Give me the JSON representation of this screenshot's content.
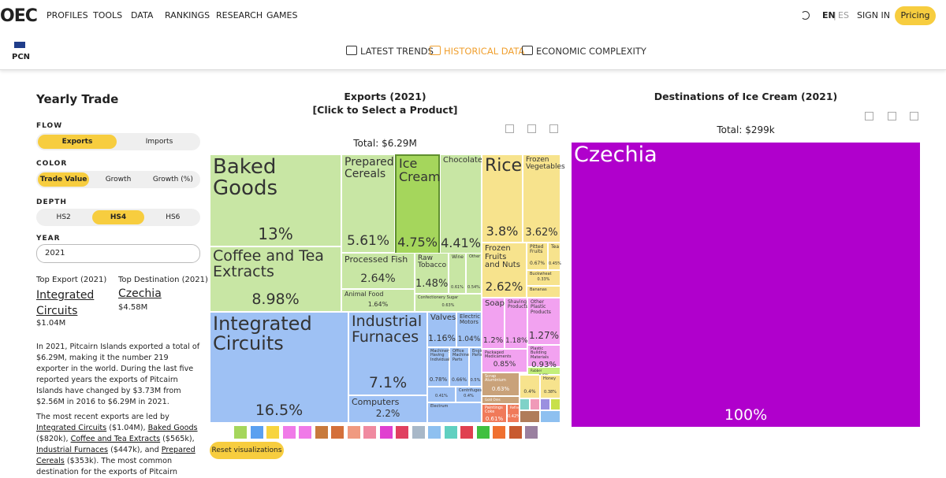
{
  "header": {
    "logo": "OEC",
    "nav": [
      "PROFILES",
      "TOOLS",
      "DATA",
      "RANKINGS",
      "RESEARCH",
      "GAMES"
    ],
    "lang_en": "EN",
    "lang_sep": "|",
    "lang_es": "ES",
    "sign_in": "SIGN IN",
    "pricing": "Pricing"
  },
  "profile": {
    "code": "PCN",
    "tabs": [
      "LATEST TRENDS",
      "HISTORICAL DATA",
      "ECONOMIC COMPLEXITY"
    ]
  },
  "sidebar": {
    "title": "Yearly Trade",
    "flow": {
      "label": "FLOW",
      "options": [
        "Exports",
        "Imports"
      ]
    },
    "color": {
      "label": "COLOR",
      "options": [
        "Trade Value",
        "Growth",
        "Growth (%)"
      ]
    },
    "depth": {
      "label": "DEPTH",
      "options": [
        "HS2",
        "HS4",
        "HS6"
      ]
    },
    "year": {
      "label": "YEAR",
      "value": "2021"
    },
    "top_export": {
      "label": "Top Export (2021)",
      "name": "Integrated Circuits",
      "value": "$1.04M"
    },
    "top_destination": {
      "label": "Top Destination (2021)",
      "name": "Czechia",
      "value": "$4.58M"
    },
    "paragraph1": "In 2021, Pitcairn Islands exported a total of $6.29M, making it the number 219 exporter in the world. During the last five reported years the exports of Pitcairn Islands have changed by $3.73M from $2.56M in 2016 to $6.29M in 2021.",
    "paragraph2": [
      {
        "text": "The most recent exports are led by "
      },
      {
        "link": "Integrated Circuits"
      },
      {
        "text": " ($1.04M), "
      },
      {
        "link": "Baked Goods"
      },
      {
        "text": " ($820k), "
      },
      {
        "link": "Coffee and Tea Extracts"
      },
      {
        "text": " ($565k), "
      },
      {
        "link": "Industrial Furnaces"
      },
      {
        "text": " ($447k), and "
      },
      {
        "link": "Prepared Cereals"
      },
      {
        "text": " ($353k). The most common destination for the exports of Pitcairn"
      }
    ]
  },
  "exports_chart": {
    "title": "Exports (2021)",
    "subtitle": "[Click to Select a Product]",
    "total": "Total: $6.29M",
    "tiles": [
      {
        "label": "Baked Goods",
        "share": "13%"
      },
      {
        "label": "Prepared Cereals",
        "share": "5.61%"
      },
      {
        "label": "Ice Cream",
        "share": "4.75%"
      },
      {
        "label": "Chocolate",
        "share": "4.41%"
      },
      {
        "label": "Coffee and Tea Extracts",
        "share": "8.98%"
      },
      {
        "label": "Processed Fish",
        "share": "2.64%"
      },
      {
        "label": "Animal Food",
        "share": "1.64%"
      },
      {
        "label": "Raw Tobacco",
        "share": "1.48%"
      },
      {
        "label": "Wine",
        "share": "0.61%"
      },
      {
        "label": "Other",
        "share": "0.54%"
      },
      {
        "label": "Confectionery Sugar",
        "share": "0.63%"
      },
      {
        "label": "Rice",
        "share": "3.8%"
      },
      {
        "label": "Frozen Vegetables",
        "share": "3.62%"
      },
      {
        "label": "Frozen Fruits and Nuts",
        "share": "2.62%"
      },
      {
        "label": "Pitted Fruits",
        "share": "0.67%"
      },
      {
        "label": "Tea",
        "share": "0.45%"
      },
      {
        "label": "Buckwheat",
        "share": "0.33%"
      },
      {
        "label": "Bananas"
      },
      {
        "label": "Integrated Circuits",
        "share": "16.5%"
      },
      {
        "label": "Industrial Furnaces",
        "share": "7.1%"
      },
      {
        "label": "Computers",
        "share": "2.2%"
      },
      {
        "label": "Valves",
        "share": "1.16%"
      },
      {
        "label": "Electric Motors",
        "share": "1.04%"
      },
      {
        "label": "Machinery Having Individual",
        "share": "0.78%"
      },
      {
        "label": "Office Machine Parts",
        "share": "0.66%"
      },
      {
        "label": "Engine Parts",
        "share": "0.5%"
      },
      {
        "share": "0.41%"
      },
      {
        "label": "Centrifuges",
        "share": "0.4%"
      },
      {
        "label": "Electrum"
      },
      {
        "label": "Soap",
        "share": "1.2%"
      },
      {
        "label": "Shaving Products",
        "share": "1.18%"
      },
      {
        "label": "Packaged Medicaments",
        "share": "0.85%"
      },
      {
        "label": "Other Plastic Products",
        "share": "1.27%"
      },
      {
        "label": "Plastic Building Materials",
        "share": "0.93%"
      },
      {
        "label": "Rubber",
        "share": "0.42%"
      },
      {
        "label": "Scrap Aluminium",
        "share": "0.63%"
      },
      {
        "label": "Gold Ores"
      },
      {
        "label": "Paintings Coke",
        "share": "0.61%"
      },
      {
        "label": "Refined",
        "share": "0.42%"
      },
      {
        "share": "0.4%"
      },
      {
        "label": "Honey",
        "share": "0.38%"
      }
    ]
  },
  "destinations_chart": {
    "title": "Destinations of Ice Cream (2021)",
    "total": "Total: $299k",
    "tiles": [
      {
        "label": "Czechia",
        "share": "100%"
      }
    ]
  },
  "reset_button": "Reset visualizations"
}
